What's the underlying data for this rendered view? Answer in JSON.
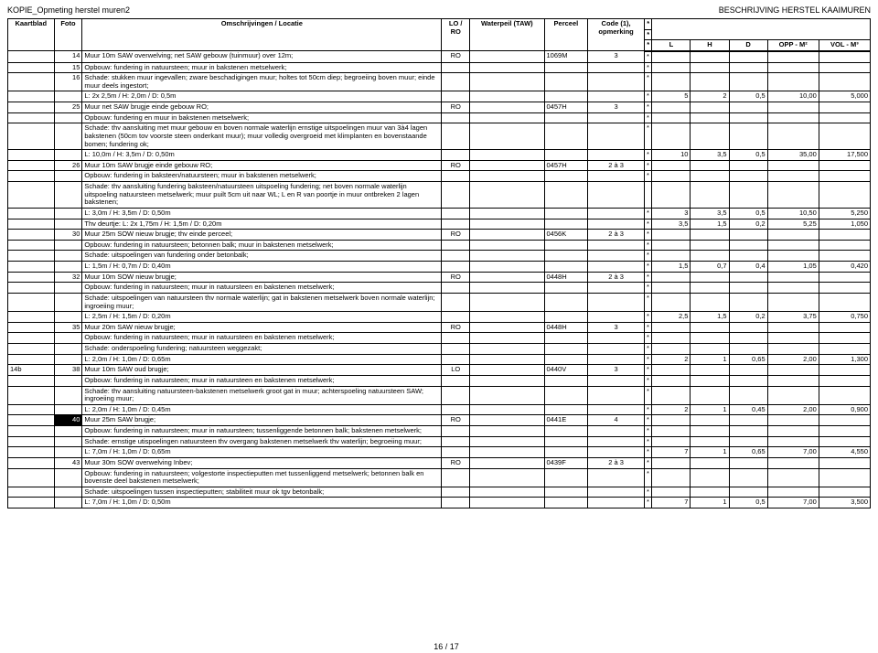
{
  "doc_header_left": "KOPIE_Opmeting herstel muren2",
  "doc_header_right": "BESCHRIJVING HERSTEL KAAIMUREN",
  "page_number": "16 / 17",
  "columns": {
    "kaartblad": "Kaartblad",
    "foto": "Foto",
    "omsch": "Omschrijvingen / Locatie",
    "lo": "LO / RO",
    "wp": "Waterpeil (TAW)",
    "perceel": "Perceel",
    "code": "Code (1), opmerking",
    "star": "*",
    "L": "L",
    "H": "H",
    "D": "D",
    "opp": "OPP - M²",
    "vol": "VOL - M³"
  },
  "rows": [
    {
      "id": "14",
      "text": "Muur 10m SAW overwelving; net SAW gebouw (tuinmuur) over 12m;",
      "lo": "RO",
      "wp": "",
      "perceel": "1069M",
      "code": "3",
      "star": "*"
    },
    {
      "id": "15",
      "text": "Opbouw: fundering in natuursteen; muur in bakstenen metselwerk;",
      "star": "*"
    },
    {
      "id": "16",
      "text": "Schade: stukken muur ingevallen; zware beschadigingen muur; holtes tot 50cm diep; begroeiing boven muur; einde muur deels ingestort;",
      "star": "*"
    },
    {
      "text": "L: 2x 2,5m / H: 2,0m / D: 0,5m",
      "star": "*",
      "L": "5",
      "H": "2",
      "D": "0,5",
      "opp": "10,00",
      "vol": "5,000"
    },
    {
      "id": "25",
      "text": "Muur net SAW brugje einde gebouw RO;",
      "lo": "RO",
      "wp": "",
      "perceel": "0457H",
      "code": "3",
      "star": "*"
    },
    {
      "text": "Opbouw: fundering en muur in bakstenen metselwerk;",
      "star": "*"
    },
    {
      "text": "Schade: thv aansluiting met muur gebouw en boven normale waterlijn ernstige uitspoelingen muur van 3à4 lagen bakstenen (50cm tov voorste steen onderkant muur); muur volledig overgroeid met klimplanten en bovenstaande bomen; fundering ok;",
      "star": "*"
    },
    {
      "text": "L: 10,0m / H: 3,5m / D: 0,50m",
      "star": "*",
      "L": "10",
      "H": "3,5",
      "D": "0,5",
      "opp": "35,00",
      "vol": "17,500"
    },
    {
      "id": "26",
      "text": "Muur 10m SAW brugje einde gebouw RO;",
      "lo": "RO",
      "wp": "",
      "perceel": "0457H",
      "code": "2 à 3",
      "star": "*"
    },
    {
      "text": "Opbouw: fundering in baksteen/natuursteen; muur in bakstenen metselwerk;",
      "star": "*"
    },
    {
      "text": "Schade: thv aansluiting fundering baksteen/natuursteen uitspoeling fundering; net boven normale waterlijn uitspoeling natuursteen metselwerk; muur puilt 5cm uit naar WL; L en R van poortje in muur ontbreken 2 lagen bakstenen;"
    },
    {
      "text": "L: 3,0m / H: 3,5m / D: 0,50m",
      "star": "*",
      "L": "3",
      "H": "3,5",
      "D": "0,5",
      "opp": "10,50",
      "vol": "5,250"
    },
    {
      "text": "Thv deurtje: L: 2x 1,75m / H: 1,5m / D: 0,20m",
      "star": "*",
      "L": "3,5",
      "H": "1,5",
      "D": "0,2",
      "opp": "5,25",
      "vol": "1,050"
    },
    {
      "id": "30",
      "text": "Muur 25m SOW nieuw brugje; thv einde perceel;",
      "lo": "RO",
      "wp": "",
      "perceel": "0456K",
      "code": "2 à 3",
      "star": "*"
    },
    {
      "text": "Opbouw: fundering in natuursteen; betonnen balk; muur in bakstenen metselwerk;",
      "star": "*"
    },
    {
      "text": "Schade: uitspoelingen van fundering onder betonbalk;",
      "star": "*"
    },
    {
      "text": "L: 1,5m / H: 0,7m / D: 0,40m",
      "star": "*",
      "L": "1,5",
      "H": "0,7",
      "D": "0,4",
      "opp": "1,05",
      "vol": "0,420"
    },
    {
      "id": "32",
      "text": "Muur 10m SOW nieuw brugje;",
      "lo": "RO",
      "wp": "",
      "perceel": "0448H",
      "code": "2 à 3",
      "star": "*"
    },
    {
      "text": "Opbouw: fundering in natuursteen; muur in natuursteen en  bakstenen metselwerk;",
      "star": "*"
    },
    {
      "text": "Schade: uitspoelingen van natuursteen thv normale waterlijn; gat in bakstenen metselwerk boven normale waterlijn; ingroeiing muur;",
      "star": "*"
    },
    {
      "text": "L: 2,5m / H: 1,5m / D: 0,20m",
      "star": "*",
      "L": "2,5",
      "H": "1,5",
      "D": "0,2",
      "opp": "3,75",
      "vol": "0,750"
    },
    {
      "id": "35",
      "text": "Muur 20m SAW nieuw brugje;",
      "lo": "RO",
      "wp": "",
      "perceel": "0448H",
      "code": "3",
      "star": "*"
    },
    {
      "text": "Opbouw: fundering in natuursteen; muur in natuursteen en bakstenen metselwerk;",
      "star": "*"
    },
    {
      "text": "Schade: onderspoeling fundering; natuursteen weggezakt;",
      "star": "*"
    },
    {
      "text": "L: 2,0m / H: 1,0m / D: 0,65m",
      "star": "*",
      "L": "2",
      "H": "1",
      "D": "0,65",
      "opp": "2,00",
      "vol": "1,300"
    },
    {
      "kaart": "14b",
      "id": "38",
      "text": "Muur 10m SAW oud brugje;",
      "lo": "LO",
      "wp": "",
      "perceel": "0440V",
      "code": "3",
      "star": "*"
    },
    {
      "text": "Opbouw: fundering in natuursteen; muur in natuursteen en bakstenen metselwerk;",
      "star": "*"
    },
    {
      "text": "Schade: thv aansluiting natuursteen-bakstenen metselwerk groot gat in muur; achterspoeling natuursteen SAW; ingroeiing muur;",
      "star": "*"
    },
    {
      "text": "L: 2,0m / H: 1,0m / D: 0,45m",
      "star": "*",
      "L": "2",
      "H": "1",
      "D": "0,45",
      "opp": "2,00",
      "vol": "0,900"
    },
    {
      "id": "40",
      "black": true,
      "text": "Muur 25m SAW brugje;",
      "lo": "RO",
      "wp": "",
      "perceel": "0441E",
      "code": "4",
      "star": "*"
    },
    {
      "text": "Opbouw: fundering in natuursteen; muur in natuursteen; tussenliggende betonnen balk; bakstenen metselwerk;",
      "star": "*"
    },
    {
      "text": "Schade: ernstige utispoelingen natuursteen thv overgang bakstenen metselwerk thv waterlijn; begroeiing muur;",
      "star": "*"
    },
    {
      "text": "L: 7,0m / H: 1,0m / D: 0,65m",
      "star": "*",
      "L": "7",
      "H": "1",
      "D": "0,65",
      "opp": "7,00",
      "vol": "4,550"
    },
    {
      "id": "43",
      "text": "Muur 30m SOW overwelving Inbev;",
      "lo": "RO",
      "wp": "",
      "perceel": "0439F",
      "code": "2 à 3",
      "star": "*"
    },
    {
      "text": "Opbouw: fundering in natuursteen; volgestorte inspectieputten met tussenliggend metselwerk; betonnen balk en bovenste deel bakstenen metselwerk;",
      "star": "*"
    },
    {
      "text": "Schade: uitspoelingen tussen inspectieputten; stabiliteit muur ok tgv betonbalk;",
      "star": "*"
    },
    {
      "text": "L: 7,0m / H: 1,0m / D: 0,50m",
      "star": "*",
      "L": "7",
      "H": "1",
      "D": "0,5",
      "opp": "7,00",
      "vol": "3,500"
    }
  ]
}
